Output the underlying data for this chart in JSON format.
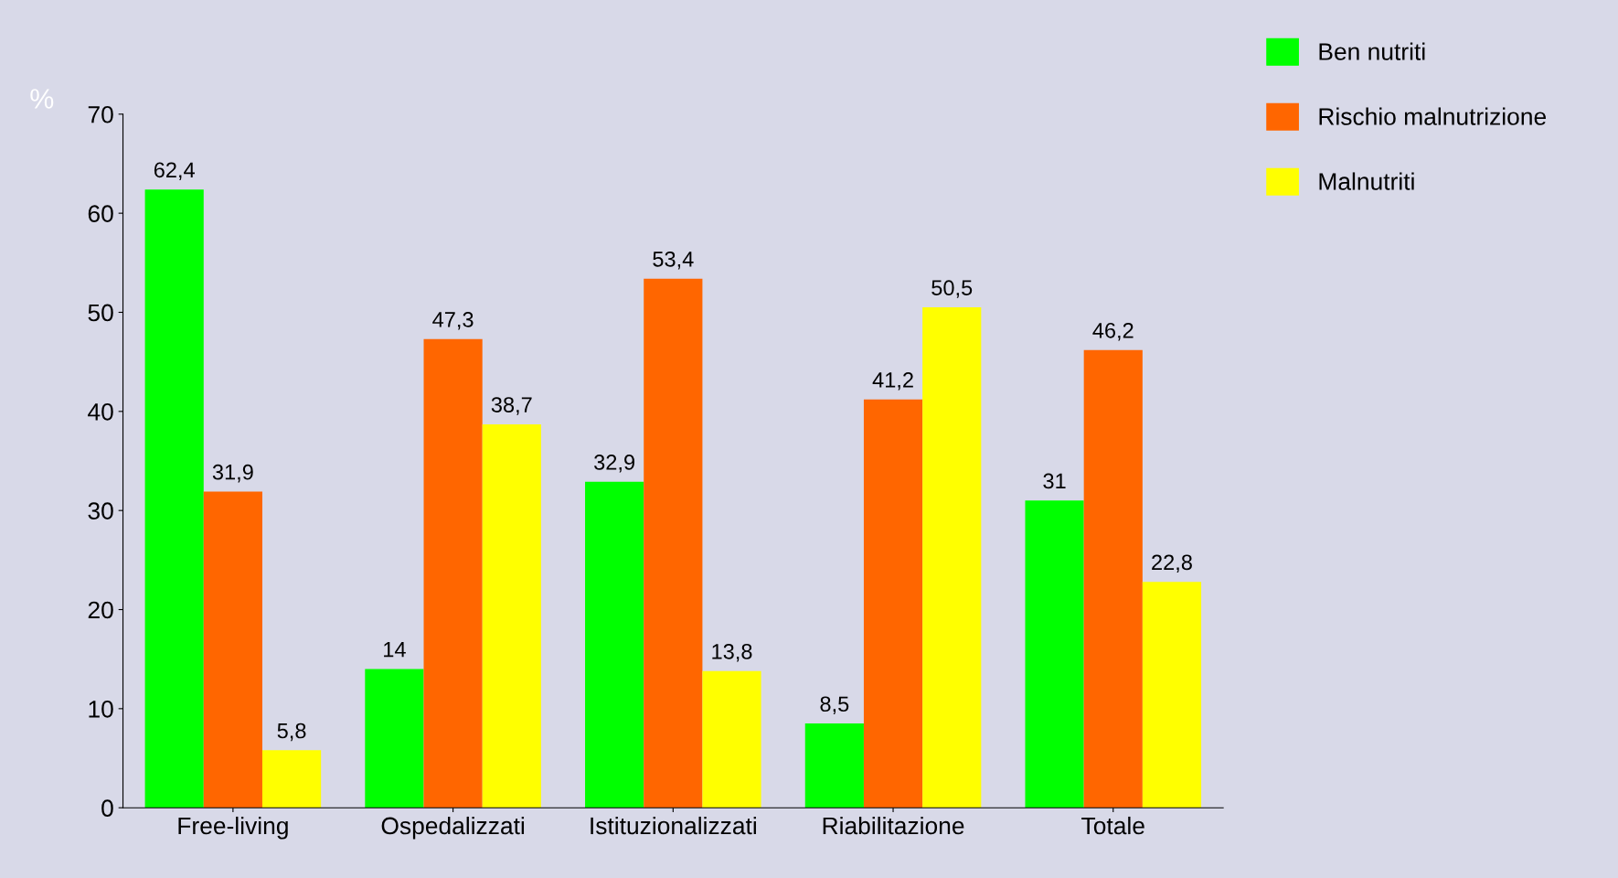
{
  "chart_data": {
    "type": "bar",
    "ylabel": "%",
    "categories": [
      "Free-living",
      "Ospedalizzati",
      "Istituzionalizzati",
      "Riabilitazione",
      "Totale"
    ],
    "series": [
      {
        "name": "Ben nutriti",
        "color": "#00ff00",
        "values": [
          62.4,
          14,
          32.9,
          8.5,
          31
        ],
        "value_labels": [
          "62,4",
          "14",
          "32,9",
          "8,5",
          "31"
        ]
      },
      {
        "name": "Rischio malnutrizione",
        "color": "#ff6600",
        "values": [
          31.9,
          47.3,
          53.4,
          41.2,
          46.2
        ],
        "value_labels": [
          "31,9",
          "47,3",
          "53,4",
          "41,2",
          "46,2"
        ]
      },
      {
        "name": "Malnutriti",
        "color": "#ffff00",
        "values": [
          5.8,
          38.7,
          13.8,
          50.5,
          22.8
        ],
        "value_labels": [
          "5,8",
          "38,7",
          "13,8",
          "50,5",
          "22,8"
        ]
      }
    ],
    "ylim": [
      0,
      70
    ],
    "yticks": [
      0,
      10,
      20,
      30,
      40,
      50,
      60,
      70
    ],
    "legend": "top right",
    "grid": false
  }
}
